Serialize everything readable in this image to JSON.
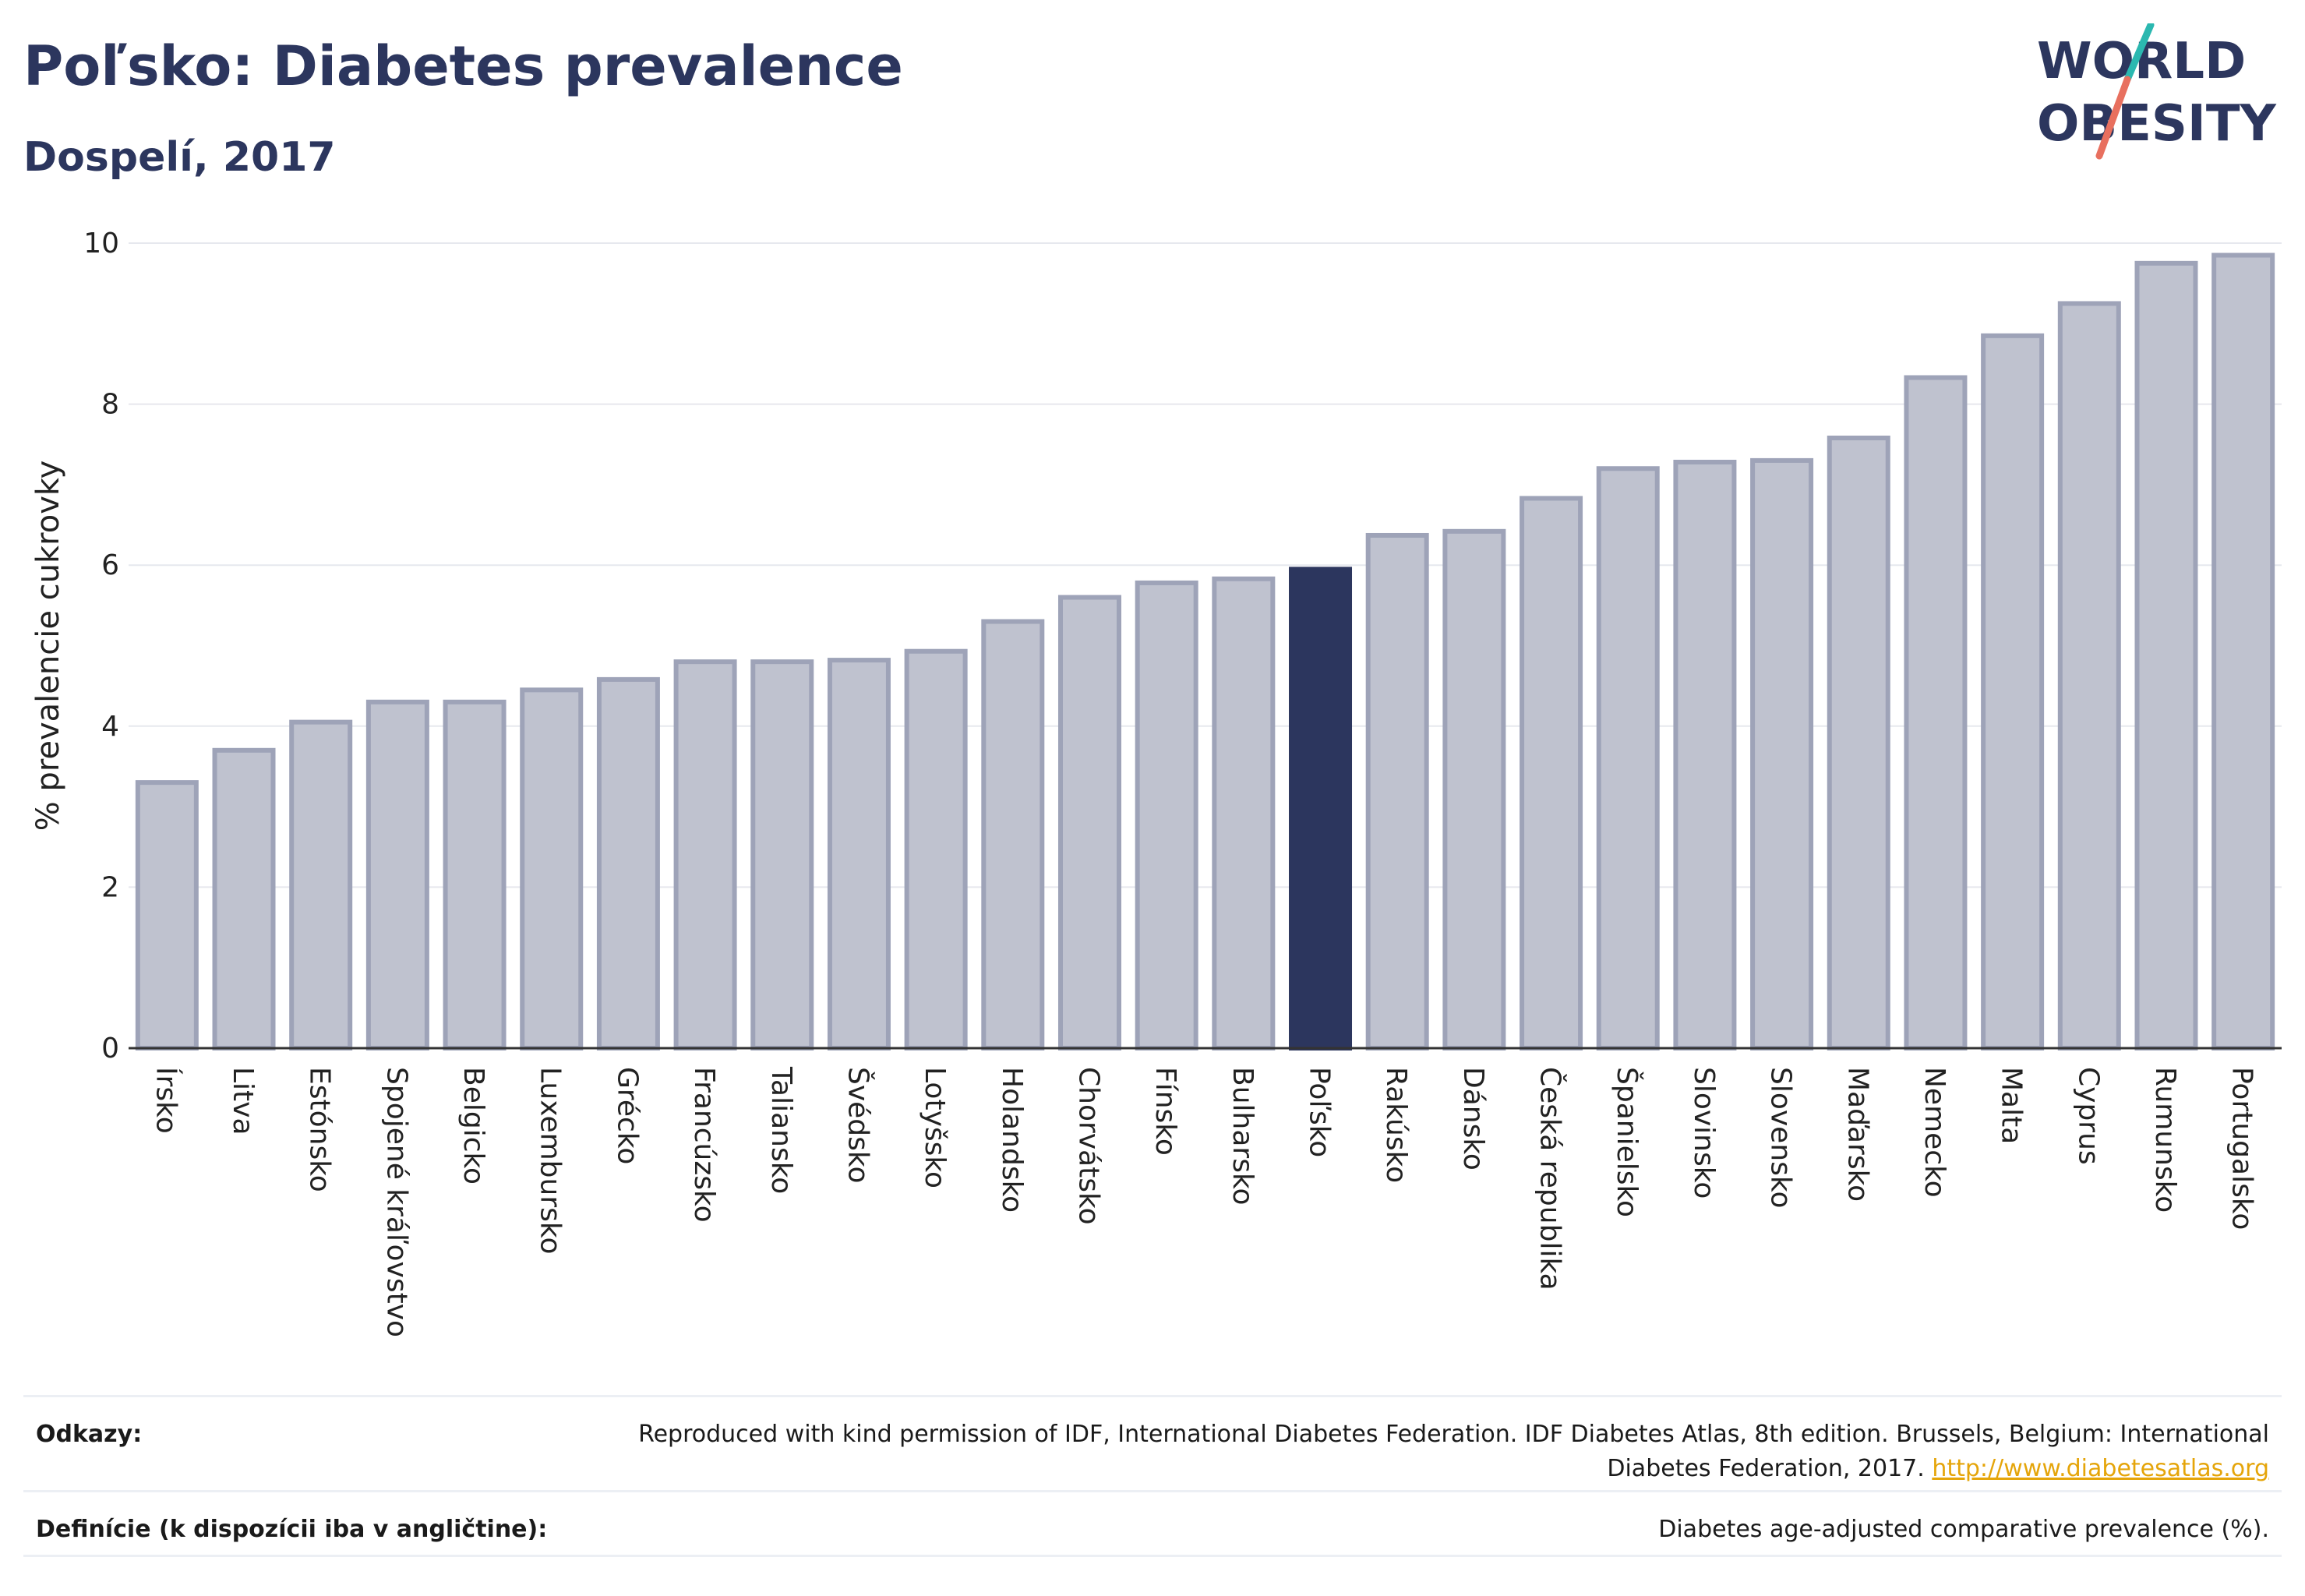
{
  "header": {
    "title": "Poľsko: Diabetes prevalence",
    "subtitle": "Dospelí, 2017"
  },
  "logo": {
    "line1": "WORLD",
    "line2": "OBESITY",
    "accent_teal": "#2bb8b0",
    "accent_coral": "#e8705f",
    "text_color": "#2c365e"
  },
  "chart_data": {
    "type": "bar",
    "title": "Poľsko: Diabetes prevalence",
    "subtitle": "Dospelí, 2017",
    "xlabel": "",
    "ylabel": "% prevalencie cukrovky",
    "ylim": [
      0,
      10
    ],
    "yticks": [
      0,
      2,
      4,
      6,
      8,
      10
    ],
    "grid": true,
    "highlight": "Poľsko",
    "colors": {
      "bar": "#bfc2cf",
      "bar_edge": "#9ea3b8",
      "highlight": "#2c365e"
    },
    "categories": [
      "Írsko",
      "Litva",
      "Estónsko",
      "Spojené kráľovstvo",
      "Belgicko",
      "Luxembursko",
      "Grécko",
      "Francúzsko",
      "Taliansko",
      "Švédsko",
      "Lotyšsko",
      "Holandsko",
      "Chorvátsko",
      "Fínsko",
      "Bulharsko",
      "Poľsko",
      "Rakúsko",
      "Dánsko",
      "Česká republika",
      "Španielsko",
      "Slovinsko",
      "Slovensko",
      "Maďarsko",
      "Nemecko",
      "Malta",
      "Cyprus",
      "Rumunsko",
      "Portugalsko"
    ],
    "values": [
      3.3,
      3.7,
      4.05,
      4.3,
      4.3,
      4.45,
      4.58,
      4.8,
      4.8,
      4.82,
      4.93,
      5.3,
      5.6,
      5.78,
      5.83,
      5.95,
      6.37,
      6.42,
      6.83,
      7.2,
      7.28,
      7.3,
      7.58,
      8.33,
      8.85,
      9.25,
      9.75,
      9.85
    ]
  },
  "footer": {
    "references_label": "Odkazy:",
    "references_text": "Reproduced with kind permission of IDF, International Diabetes Federation. IDF Diabetes Atlas, 8th edition. Brussels, Belgium: International Diabetes Federation, 2017.",
    "references_link": "http://www.diabetesatlas.org",
    "definitions_label": "Definície (k dispozícii iba v angličtine):",
    "definitions_text": "Diabetes age-adjusted comparative prevalence (%)."
  }
}
